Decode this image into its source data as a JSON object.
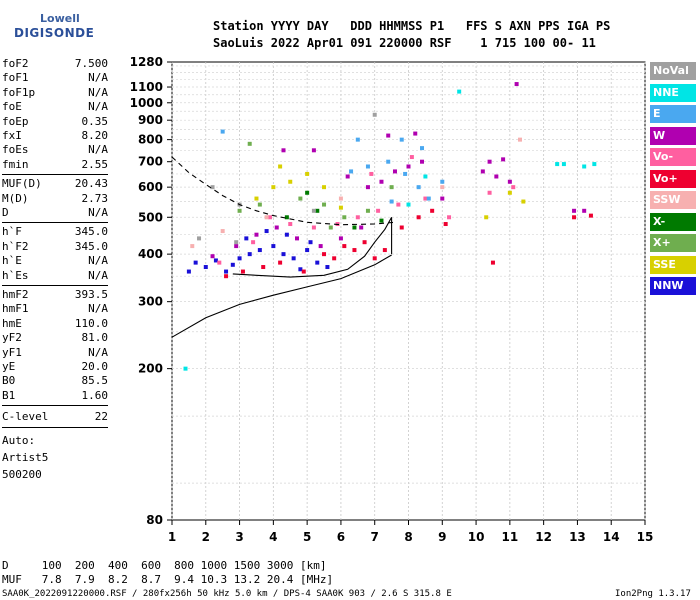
{
  "logo": {
    "top": "Lowell",
    "main": "DIGISONDE"
  },
  "header": {
    "labels": "Station YYYY DAY   DDD HHMMSS P1   FFS S AXN PPS IGA PS",
    "values": "SaoLuis 2022 Apr01 091 220000 RSF    1 715 100 00- 11"
  },
  "params_group1": [
    {
      "name": "foF2",
      "value": "7.500"
    },
    {
      "name": "foF1",
      "value": "N/A"
    },
    {
      "name": "foF1p",
      "value": "N/A"
    },
    {
      "name": "foE",
      "value": "N/A"
    },
    {
      "name": "foEp",
      "value": "0.35"
    },
    {
      "name": "fxI",
      "value": "8.20"
    },
    {
      "name": "foEs",
      "value": "N/A"
    },
    {
      "name": "fmin",
      "value": "2.55"
    }
  ],
  "params_group2": [
    {
      "name": "MUF(D)",
      "value": "20.43"
    },
    {
      "name": "M(D)",
      "value": "2.73"
    },
    {
      "name": "D",
      "value": "N/A"
    }
  ],
  "params_group3": [
    {
      "name": "h`F",
      "value": "345.0"
    },
    {
      "name": "h`F2",
      "value": "345.0"
    },
    {
      "name": "h`E",
      "value": "N/A"
    },
    {
      "name": "h`Es",
      "value": "N/A"
    }
  ],
  "params_group4": [
    {
      "name": "hmF2",
      "value": "393.5"
    },
    {
      "name": "hmF1",
      "value": "N/A"
    },
    {
      "name": "hmE",
      "value": "110.0"
    },
    {
      "name": "yF2",
      "value": "81.0"
    },
    {
      "name": "yF1",
      "value": "N/A"
    },
    {
      "name": "yE",
      "value": "20.0"
    },
    {
      "name": "B0",
      "value": "85.5"
    },
    {
      "name": "B1",
      "value": "1.60"
    }
  ],
  "clevel": {
    "name": "C-level",
    "value": "22"
  },
  "auto": [
    "Auto:",
    "Artist5",
    "500200"
  ],
  "legend": [
    {
      "label": "NoVal",
      "color": "#a0a0a0"
    },
    {
      "label": "NNE",
      "color": "#00e5e5"
    },
    {
      "label": "E",
      "color": "#4aa8f0"
    },
    {
      "label": "W",
      "color": "#b000b0"
    },
    {
      "label": "Vo-",
      "color": "#ff5fa0"
    },
    {
      "label": "Vo+",
      "color": "#ee0030"
    },
    {
      "label": "SSW",
      "color": "#f7b0b0"
    },
    {
      "label": "X-",
      "color": "#007a00"
    },
    {
      "label": "X+",
      "color": "#6fae4f"
    },
    {
      "label": "SSE",
      "color": "#d8d000"
    },
    {
      "label": "NNW",
      "color": "#1a10d8"
    }
  ],
  "footer": {
    "row_d": "D     100  200  400  600  800 1000 1500 3000 [km]",
    "row_muf": "MUF   7.8  7.9  8.2  8.7  9.4 10.3 13.2 20.4 [MHz]",
    "file": "SAA0K_2022091220000.RSF / 280fx256h 50 kHz 5.0 km / DPS-4 SAA0K 903 / 2.6 S 315.8 E",
    "version": "Ion2Png 1.3.17"
  },
  "chart_data": {
    "type": "scatter",
    "x_ticks": [
      "1",
      "2",
      "3",
      "4",
      "5",
      "6",
      "7",
      "8",
      "9",
      "10",
      "11",
      "12",
      "13",
      "14",
      "15"
    ],
    "y_ticks": [
      "80",
      "200",
      "300",
      "400",
      "500",
      "600",
      "700",
      "800",
      "900",
      "1000",
      "1100",
      "1280"
    ],
    "xlim": [
      1,
      15
    ],
    "y_scale": "log",
    "ylim": [
      80,
      1280
    ],
    "grid": true,
    "series": [
      {
        "color": "#1a10d8",
        "points": [
          [
            1.5,
            360
          ],
          [
            1.7,
            380
          ],
          [
            2.0,
            370
          ],
          [
            2.3,
            385
          ],
          [
            2.6,
            360
          ],
          [
            3.0,
            390
          ],
          [
            3.3,
            400
          ],
          [
            3.6,
            410
          ],
          [
            4.0,
            420
          ],
          [
            4.3,
            400
          ],
          [
            4.6,
            390
          ],
          [
            5.0,
            410
          ],
          [
            5.3,
            380
          ],
          [
            5.6,
            370
          ],
          [
            3.2,
            440
          ],
          [
            3.8,
            460
          ],
          [
            4.4,
            450
          ],
          [
            5.1,
            430
          ],
          [
            2.8,
            375
          ],
          [
            4.8,
            365
          ]
        ]
      },
      {
        "color": "#b000b0",
        "points": [
          [
            2.2,
            395
          ],
          [
            2.9,
            420
          ],
          [
            3.5,
            450
          ],
          [
            4.1,
            470
          ],
          [
            4.7,
            440
          ],
          [
            5.4,
            420
          ],
          [
            6.0,
            440
          ],
          [
            6.6,
            470
          ],
          [
            6.8,
            600
          ],
          [
            7.2,
            620
          ],
          [
            7.6,
            660
          ],
          [
            8.0,
            680
          ],
          [
            8.4,
            700
          ],
          [
            9.0,
            560
          ],
          [
            10.2,
            660
          ],
          [
            10.6,
            640
          ],
          [
            11.0,
            620
          ],
          [
            10.4,
            700
          ],
          [
            10.8,
            710
          ],
          [
            12.9,
            520
          ],
          [
            13.2,
            520
          ],
          [
            11.2,
            1120
          ],
          [
            4.3,
            750
          ],
          [
            5.2,
            750
          ],
          [
            6.2,
            640
          ],
          [
            7.4,
            820
          ],
          [
            8.2,
            830
          ]
        ]
      },
      {
        "color": "#ee0030",
        "points": [
          [
            3.1,
            360
          ],
          [
            3.7,
            370
          ],
          [
            4.2,
            380
          ],
          [
            4.9,
            360
          ],
          [
            5.5,
            400
          ],
          [
            6.1,
            420
          ],
          [
            6.7,
            430
          ],
          [
            7.3,
            410
          ],
          [
            7.8,
            470
          ],
          [
            8.3,
            500
          ],
          [
            8.7,
            520
          ],
          [
            9.1,
            480
          ],
          [
            2.6,
            350
          ],
          [
            5.8,
            390
          ],
          [
            6.4,
            410
          ],
          [
            7.0,
            390
          ],
          [
            12.9,
            500
          ],
          [
            13.4,
            505
          ],
          [
            10.5,
            380
          ]
        ]
      },
      {
        "color": "#ff5fa0",
        "points": [
          [
            2.4,
            380
          ],
          [
            3.4,
            430
          ],
          [
            4.5,
            480
          ],
          [
            5.2,
            470
          ],
          [
            5.9,
            480
          ],
          [
            6.5,
            500
          ],
          [
            7.1,
            520
          ],
          [
            7.7,
            540
          ],
          [
            8.5,
            560
          ],
          [
            9.2,
            500
          ],
          [
            10.4,
            580
          ],
          [
            11.1,
            600
          ],
          [
            6.9,
            650
          ],
          [
            8.1,
            720
          ],
          [
            3.9,
            500
          ]
        ]
      },
      {
        "color": "#4aa8f0",
        "points": [
          [
            6.3,
            660
          ],
          [
            6.8,
            680
          ],
          [
            7.4,
            700
          ],
          [
            7.9,
            650
          ],
          [
            8.3,
            600
          ],
          [
            8.6,
            560
          ],
          [
            9.0,
            620
          ],
          [
            6.5,
            800
          ],
          [
            7.8,
            800
          ],
          [
            8.4,
            760
          ],
          [
            2.5,
            840
          ],
          [
            7.5,
            550
          ]
        ]
      },
      {
        "color": "#00e5e5",
        "points": [
          [
            8.0,
            540
          ],
          [
            8.5,
            640
          ],
          [
            9.5,
            1070
          ],
          [
            12.4,
            690
          ],
          [
            12.6,
            690
          ],
          [
            13.2,
            680
          ],
          [
            1.4,
            200
          ],
          [
            13.5,
            690
          ]
        ]
      },
      {
        "color": "#d8d000",
        "points": [
          [
            4.0,
            600
          ],
          [
            4.5,
            620
          ],
          [
            5.0,
            650
          ],
          [
            5.5,
            600
          ],
          [
            3.5,
            560
          ],
          [
            4.2,
            680
          ],
          [
            11.0,
            580
          ],
          [
            11.4,
            550
          ],
          [
            10.3,
            500
          ],
          [
            6.0,
            530
          ]
        ]
      },
      {
        "color": "#6fae4f",
        "points": [
          [
            3.0,
            520
          ],
          [
            3.6,
            540
          ],
          [
            4.8,
            560
          ],
          [
            5.5,
            540
          ],
          [
            6.1,
            500
          ],
          [
            6.8,
            520
          ],
          [
            7.5,
            600
          ],
          [
            3.3,
            780
          ],
          [
            5.7,
            470
          ]
        ]
      },
      {
        "color": "#007a00",
        "points": [
          [
            4.4,
            500
          ],
          [
            5.3,
            520
          ],
          [
            6.4,
            470
          ],
          [
            7.2,
            490
          ],
          [
            5.0,
            580
          ]
        ]
      },
      {
        "color": "#a0a0a0",
        "points": [
          [
            2.2,
            600
          ],
          [
            3.0,
            540
          ],
          [
            1.8,
            440
          ],
          [
            5.2,
            520
          ],
          [
            2.9,
            430
          ],
          [
            7.0,
            930
          ]
        ]
      },
      {
        "color": "#f7b0b0",
        "points": [
          [
            1.6,
            420
          ],
          [
            2.5,
            460
          ],
          [
            3.8,
            500
          ],
          [
            6.0,
            560
          ],
          [
            9.0,
            600
          ],
          [
            11.3,
            800
          ]
        ]
      }
    ],
    "curves": [
      {
        "style": "solid",
        "points": [
          [
            1.0,
            242
          ],
          [
            2.0,
            272
          ],
          [
            3.0,
            295
          ],
          [
            4.0,
            312
          ],
          [
            5.0,
            328
          ],
          [
            6.0,
            345
          ],
          [
            7.0,
            375
          ],
          [
            7.5,
            398
          ]
        ]
      },
      {
        "style": "solid",
        "points": [
          [
            2.8,
            355
          ],
          [
            3.5,
            352
          ],
          [
            4.5,
            348
          ],
          [
            5.5,
            352
          ],
          [
            6.2,
            365
          ],
          [
            6.7,
            395
          ],
          [
            7.0,
            430
          ],
          [
            7.3,
            465
          ],
          [
            7.5,
            500
          ]
        ]
      },
      {
        "style": "dashed",
        "points": [
          [
            1.0,
            720
          ],
          [
            1.5,
            655
          ],
          [
            2.0,
            610
          ],
          [
            2.5,
            570
          ],
          [
            3.0,
            540
          ],
          [
            3.5,
            520
          ],
          [
            4.0,
            505
          ],
          [
            5.0,
            485
          ],
          [
            6.0,
            478
          ],
          [
            7.0,
            480
          ],
          [
            7.6,
            485
          ]
        ]
      },
      {
        "style": "solid-vertical",
        "points": [
          [
            7.5,
            500
          ],
          [
            7.5,
            400
          ]
        ]
      }
    ]
  }
}
